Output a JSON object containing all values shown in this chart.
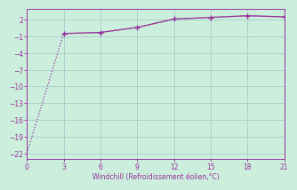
{
  "xlabel": "Windchill (Refroidissement éolien,°C)",
  "background_color": "#cceedd",
  "line_color": "#993399",
  "x_upper": [
    3,
    6,
    9,
    12,
    15,
    18,
    21
  ],
  "y_upper": [
    -0.5,
    -0.3,
    0.6,
    2.1,
    2.4,
    2.7,
    2.5
  ],
  "x_lower": [
    0,
    3,
    6,
    9,
    12,
    15,
    18,
    21
  ],
  "y_lower": [
    -22,
    -0.5,
    -0.3,
    0.6,
    2.1,
    2.4,
    2.7,
    2.5
  ],
  "xlim": [
    0,
    21
  ],
  "ylim": [
    -23,
    4
  ],
  "xticks": [
    0,
    3,
    6,
    9,
    12,
    15,
    18,
    21
  ],
  "yticks": [
    2,
    -1,
    -4,
    -7,
    -10,
    -13,
    -16,
    -19,
    -22
  ],
  "grid_color": "#aacccc"
}
